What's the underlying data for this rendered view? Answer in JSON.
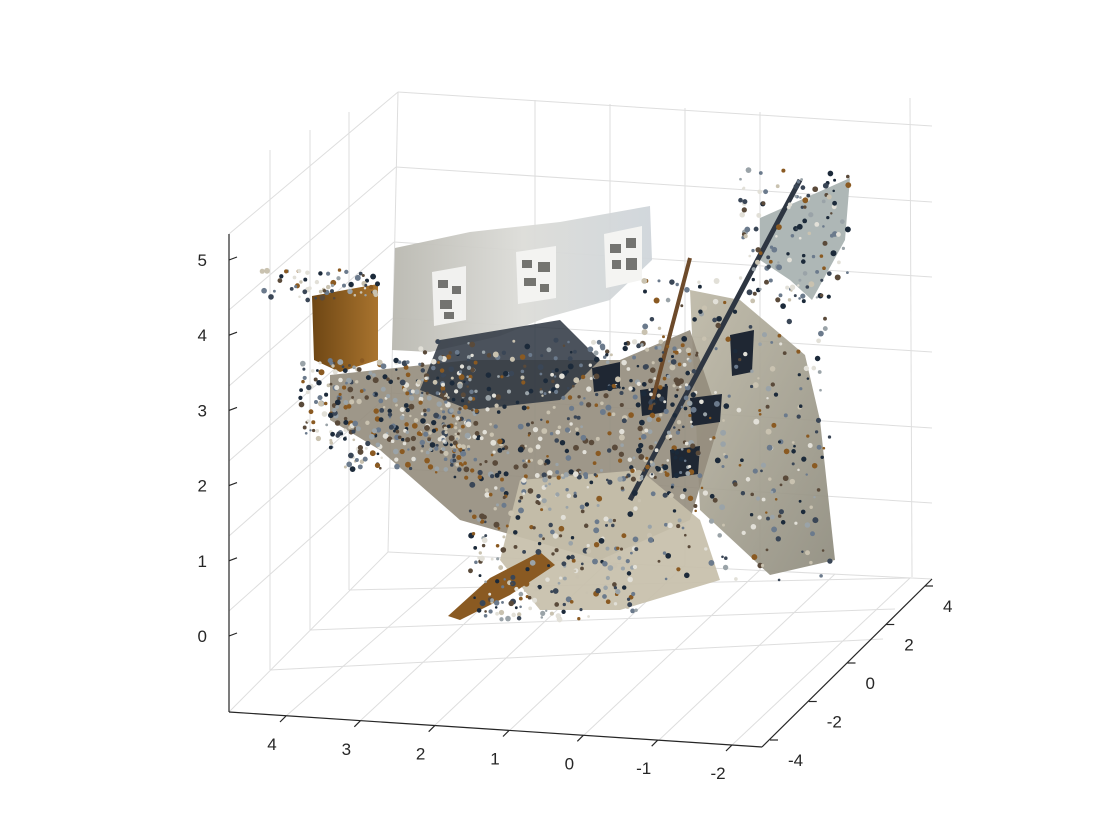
{
  "chart_data": {
    "type": "scatter3d",
    "title": "",
    "xlabel": "",
    "ylabel": "",
    "zlabel": "",
    "grid": true,
    "box": false,
    "x_ticks": [
      "4",
      "3",
      "2",
      "1",
      "0",
      "-1",
      "-2"
    ],
    "y_ticks": [
      "-4",
      "-2",
      "0",
      "2",
      "4"
    ],
    "z_ticks": [
      "0",
      "1",
      "2",
      "3",
      "4",
      "5"
    ],
    "colors": {
      "grid": "#dedede",
      "axis": "#262626",
      "wall": "#cfd3d3",
      "wood": "#8a5a22",
      "dark": "#1c2a3a",
      "floor": "#c9c2b0"
    }
  }
}
